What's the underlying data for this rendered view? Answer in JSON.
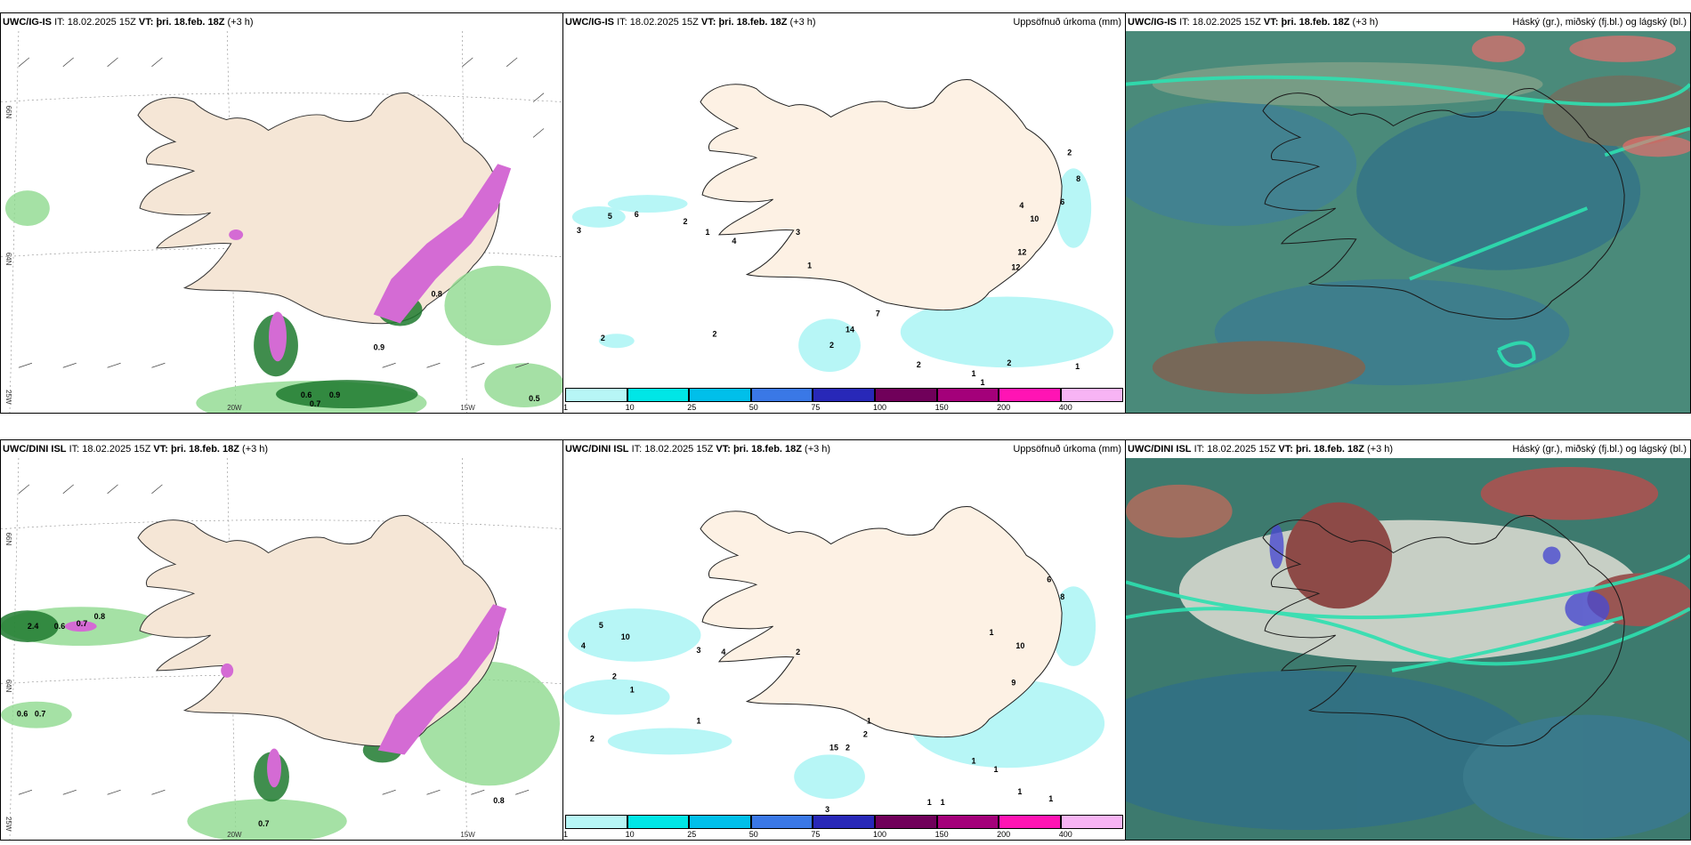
{
  "rows": [
    {
      "model": "UWC/IG-IS",
      "it_label": "IT:",
      "it_value": "18.02.2025 15Z",
      "vt_label": "VT:",
      "vt_value": "þri. 18.feb. 18Z",
      "lead": "(+3 h)"
    },
    {
      "model": "UWC/DINI ISL",
      "it_label": "IT:",
      "it_value": "18.02.2025 15Z",
      "vt_label": "VT:",
      "vt_value": "þri. 18.feb. 18Z",
      "lead": "(+3 h)"
    }
  ],
  "precip_title": "Uppsöfnuð úrkoma (mm)",
  "cloud_title": "Háský (gr.), miðský (fj.bl.) og lágský (bl.)",
  "colorbar": {
    "labels": [
      "1",
      "10",
      "25",
      "50",
      "75",
      "100",
      "150",
      "200",
      "400"
    ],
    "colors": [
      "#b7f6f6",
      "#00e6e6",
      "#00bfea",
      "#3a78e6",
      "#2828b8",
      "#70005a",
      "#a4007a",
      "#ff14b4",
      "#f7b4f4"
    ]
  },
  "axis_labels": {
    "lat66": "66N",
    "lat64": "64N",
    "lon20": "20W",
    "lon15": "15W",
    "lon25": "25W"
  },
  "panel_values": {
    "p1": [
      "0.6",
      "0.7",
      "0.9",
      "0.9",
      "0.8",
      "0.5"
    ],
    "p2": [
      "5",
      "6",
      "2",
      "3",
      "1",
      "4",
      "3",
      "1",
      "2",
      "2",
      "14",
      "7",
      "2",
      "2",
      "4",
      "2",
      "10",
      "12",
      "8",
      "12",
      "1",
      "1",
      "1",
      "6",
      "2"
    ],
    "p4": [
      "2.4",
      "0.6",
      "0.7",
      "0.7",
      "0.8",
      "0.6",
      "0.7",
      "0.8"
    ],
    "p5": [
      "4",
      "10",
      "5",
      "2",
      "3",
      "4",
      "2",
      "2",
      "1",
      "2",
      "1",
      "15",
      "2",
      "1",
      "6",
      "8",
      "10",
      "9",
      "1",
      "1",
      "1",
      "1",
      "3",
      "1",
      "1",
      "1"
    ]
  }
}
